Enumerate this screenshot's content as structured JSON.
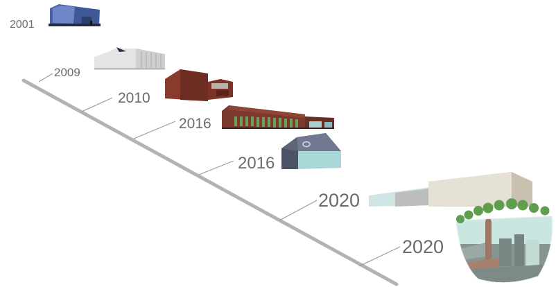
{
  "timeline": {
    "milestones": [
      {
        "year": "2001",
        "building": "blue-glass-building-icon",
        "color": "#4a63a8"
      },
      {
        "year": "2009",
        "building": "white-modern-building-icon",
        "color": "#e2e2e2"
      },
      {
        "year": "2010",
        "building": "brick-building-icon",
        "color": "#8a3a2a"
      },
      {
        "year": "2016",
        "building": "long-brick-facility-icon",
        "color": "#7c3a2e"
      },
      {
        "year": "2016",
        "building": "slate-pavilion-icon",
        "color": "#5f6577"
      },
      {
        "year": "2020",
        "building": "beige-extended-building-icon",
        "color": "#d9d3c5"
      },
      {
        "year": "2020",
        "building": "glass-dome-city-icon",
        "color": "#7aa98a"
      }
    ],
    "line_color": "#b3b3b3",
    "label_color": "#6b6b6b"
  }
}
